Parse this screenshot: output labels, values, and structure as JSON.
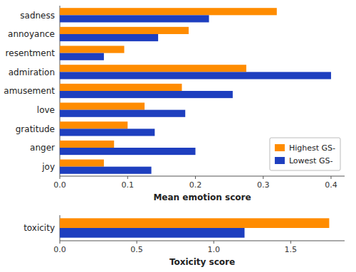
{
  "chart_data": [
    {
      "type": "bar",
      "orientation": "horizontal",
      "categories": [
        "sadness",
        "annoyance",
        "resentment",
        "admiration",
        "amusement",
        "love",
        "gratitude",
        "anger",
        "joy"
      ],
      "series": [
        {
          "name": "Highest GS-",
          "color": "#FF8C00",
          "values": [
            0.32,
            0.19,
            0.095,
            0.275,
            0.18,
            0.125,
            0.1,
            0.08,
            0.065
          ]
        },
        {
          "name": "Lowest GS-",
          "color": "#1E3FBF",
          "values": [
            0.22,
            0.145,
            0.065,
            0.4,
            0.255,
            0.185,
            0.14,
            0.2,
            0.135
          ]
        }
      ],
      "xlabel": "Mean emotion score",
      "xlim": [
        0,
        0.42
      ],
      "xticks": [
        {
          "value": 0,
          "label": "0.0"
        },
        0.1,
        0.2,
        0.3,
        0.4
      ],
      "legend": "lower right",
      "grid": false
    },
    {
      "type": "bar",
      "orientation": "horizontal",
      "categories": [
        "toxicity"
      ],
      "series": [
        {
          "color": "#FF8C00",
          "values": [
            1.75
          ]
        },
        {
          "color": "#1E3FBF",
          "values": [
            1.2
          ]
        }
      ],
      "xlabel": "Toxicity score",
      "xlim": [
        0,
        1.85
      ],
      "xticks": [
        {
          "value": 0,
          "label": "0.0"
        },
        0.5,
        {
          "value": 1,
          "label": "1.0"
        },
        1.5
      ],
      "grid": false
    }
  ]
}
